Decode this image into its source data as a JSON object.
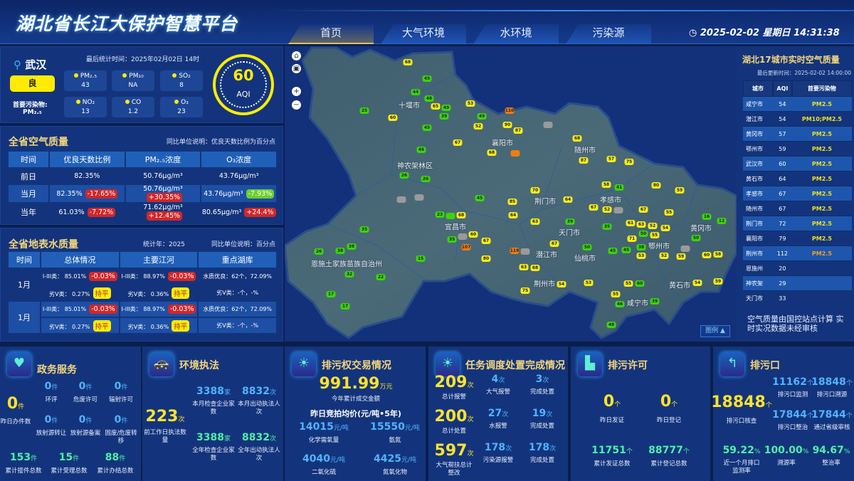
{
  "header": {
    "title": "湖北省长江大保护智慧平台",
    "tabs": [
      "首页",
      "大气环境",
      "水环境",
      "污染源"
    ],
    "active_tab": "首页",
    "datetime": "2025-02-02 星期日 14:31:38"
  },
  "city_air": {
    "city": "武汉",
    "level": "良",
    "stat_time": "最后统计时间：2025年02月02日 14时",
    "primary_label": "首要污染物:",
    "primary": "PM₂.₅",
    "aqi": "60",
    "aqi_label": "AQI",
    "pollutants": [
      {
        "name": "PM₂.₅",
        "value": "43"
      },
      {
        "name": "PM₁₀",
        "value": "NA"
      },
      {
        "name": "SO₂",
        "value": "8"
      },
      {
        "name": "NO₂",
        "value": "13"
      },
      {
        "name": "CO",
        "value": "1.2"
      },
      {
        "name": "O₃",
        "value": "23"
      }
    ]
  },
  "province_air": {
    "title": "全省空气质量",
    "note": "同比单位说明：优良天数比例为百分点",
    "headers": [
      "时间",
      "优良天数比例",
      "PM₂.₅浓度",
      "O₃浓度"
    ],
    "rows": [
      {
        "time": "前日",
        "c1": "82.35%",
        "c1b": "",
        "c2": "50.76μg/m³",
        "c2b": "",
        "c3": "43.76μg/m³",
        "c3b": ""
      },
      {
        "time": "当月",
        "c1": "82.35%",
        "c1b": "-17.65%",
        "c2": "50.76μg/m³",
        "c2b": "+30.35%",
        "c3": "43.76μg/m³",
        "c3b": "-7.93%"
      },
      {
        "time": "当年",
        "c1": "61.03%",
        "c1b": "-7.72%",
        "c2": "71.62μg/m³",
        "c2b": "+12.45%",
        "c3": "80.65μg/m³",
        "c3b": "+24.4%"
      }
    ]
  },
  "water": {
    "title": "全省地表水质量",
    "year": "统计年：2025",
    "note": "同比单位说明：百分点",
    "headers": [
      "时间",
      "总体情况",
      "主要江河",
      "重点湖库"
    ],
    "rows": [
      {
        "time": "1月",
        "a1": "I-III类：  85.01%",
        "a1b": "-0.03%",
        "a2": "劣V类：  0.27%",
        "a2b": "持平",
        "b1": "I-III类：  88.97%",
        "b1b": "-0.03%",
        "b2": "劣V类：  0.36%",
        "b2b": "持平",
        "c1": "水质优良：62个，72.09%",
        "c2": "劣V类：-个，-%"
      },
      {
        "time": "1月",
        "a1": "I-III类：  85.01%",
        "a1b": "-0.03%",
        "a2": "劣V类：  0.27%",
        "a2b": "持平",
        "b1": "I-III类：  88.97%",
        "b1b": "-0.03%",
        "b2": "劣V类：  0.36%",
        "b2b": "持平",
        "c1": "水质优良：62个，72.09%",
        "c2": "劣V类：-个，-%"
      }
    ]
  },
  "map": {
    "legend_button": "图例 ▲",
    "labels": [
      "十堰市",
      "襄阳市",
      "随州市",
      "神农架林区",
      "荆门市",
      "孝感市",
      "黄冈市",
      "宜昌市",
      "天门市",
      "潜江市",
      "仙桃市",
      "恩施土家族苗族自治州",
      "荆州市",
      "咸宁市",
      "黄石市",
      "鄂州市"
    ],
    "level_colors": {
      "y": "#f7ee16",
      "g": "#3ad40c",
      "o": "#f07c14",
      "n": "#9a9a9a"
    },
    "stations": [
      {
        "v": "68",
        "c": "y"
      },
      {
        "v": "45",
        "c": "g"
      },
      {
        "v": "44",
        "c": "g"
      },
      {
        "v": "48",
        "c": "g"
      },
      {
        "v": "65",
        "c": "y"
      },
      {
        "v": "49",
        "c": "g"
      },
      {
        "v": "39",
        "c": "g"
      },
      {
        "v": "25",
        "c": "g"
      },
      {
        "v": "60",
        "c": "y"
      },
      {
        "v": "45",
        "c": "g"
      },
      {
        "v": "53",
        "c": "y"
      },
      {
        "v": "49",
        "c": "g"
      },
      {
        "v": "52",
        "c": "y"
      },
      {
        "v": "110",
        "c": "o"
      },
      {
        "v": "90",
        "c": "y"
      },
      {
        "v": "87",
        "c": "y"
      },
      {
        "v": "67",
        "c": "y"
      },
      {
        "v": "68",
        "c": "y"
      },
      {
        "v": "",
        "c": "o"
      },
      {
        "v": "",
        "c": "n"
      },
      {
        "v": "68",
        "c": "y"
      },
      {
        "v": "87",
        "c": "y"
      },
      {
        "v": "57",
        "c": "y"
      },
      {
        "v": "75",
        "c": "y"
      },
      {
        "v": "46",
        "c": "g"
      },
      {
        "v": "26",
        "c": "g"
      },
      {
        "v": "26",
        "c": "g"
      },
      {
        "v": "",
        "c": "n"
      },
      {
        "v": "",
        "c": "n"
      },
      {
        "v": "45",
        "c": "g"
      },
      {
        "v": "64",
        "c": "y"
      },
      {
        "v": "85",
        "c": "y"
      },
      {
        "v": "70",
        "c": "y"
      },
      {
        "v": "64",
        "c": "y"
      },
      {
        "v": "67",
        "c": "y"
      },
      {
        "v": "58",
        "c": "y"
      },
      {
        "v": "41",
        "c": "g"
      },
      {
        "v": "52",
        "c": "y"
      },
      {
        "v": "",
        "c": "n"
      },
      {
        "v": "80",
        "c": "y"
      },
      {
        "v": "59",
        "c": "y"
      },
      {
        "v": "67",
        "c": "y"
      },
      {
        "v": "55",
        "c": "y"
      },
      {
        "v": "16",
        "c": "g"
      },
      {
        "v": "12",
        "c": "g"
      },
      {
        "v": "23",
        "c": "g"
      },
      {
        "v": "68",
        "c": "y"
      },
      {
        "v": "",
        "c": "g"
      },
      {
        "v": "",
        "c": "n"
      },
      {
        "v": "60",
        "c": "y"
      },
      {
        "v": "35",
        "c": "g"
      },
      {
        "v": "67",
        "c": "y"
      },
      {
        "v": "107",
        "c": "o"
      },
      {
        "v": "119",
        "c": "o"
      },
      {
        "v": "",
        "c": "n"
      },
      {
        "v": "35",
        "c": "g"
      },
      {
        "v": "38",
        "c": "g"
      },
      {
        "v": "38",
        "c": "g"
      },
      {
        "v": "26",
        "c": "g"
      },
      {
        "v": "15",
        "c": "g"
      },
      {
        "v": "80",
        "c": "y"
      },
      {
        "v": "68",
        "c": "y"
      },
      {
        "v": "63",
        "c": "y"
      },
      {
        "v": "63",
        "c": "y"
      },
      {
        "v": "67",
        "c": "y"
      },
      {
        "v": "39",
        "c": "g"
      },
      {
        "v": "35",
        "c": "g"
      },
      {
        "v": "61",
        "c": "y"
      },
      {
        "v": "63",
        "c": "y"
      },
      {
        "v": "52",
        "c": "y"
      },
      {
        "v": "71",
        "c": "y"
      },
      {
        "v": "50",
        "c": "g"
      },
      {
        "v": "38",
        "c": "g"
      },
      {
        "v": "53",
        "c": "y"
      },
      {
        "v": "50",
        "c": "g"
      },
      {
        "v": "45",
        "c": "g"
      },
      {
        "v": "45",
        "c": "g"
      },
      {
        "v": "54",
        "c": "y"
      },
      {
        "v": "55",
        "c": "y"
      },
      {
        "v": "50",
        "c": "g"
      },
      {
        "v": "52",
        "c": "y"
      },
      {
        "v": "59",
        "c": "y"
      },
      {
        "v": "",
        "c": "n"
      },
      {
        "v": "60",
        "c": "y"
      },
      {
        "v": "58",
        "c": "y"
      },
      {
        "v": "59",
        "c": "y"
      },
      {
        "v": "60",
        "c": "g"
      },
      {
        "v": "55",
        "c": "y"
      },
      {
        "v": "53",
        "c": "y"
      },
      {
        "v": "54",
        "c": "y"
      },
      {
        "v": "75",
        "c": "y"
      },
      {
        "v": "55",
        "c": "y"
      },
      {
        "v": "46",
        "c": "g"
      },
      {
        "v": "39",
        "c": "g"
      },
      {
        "v": "48",
        "c": "g"
      },
      {
        "v": "22",
        "c": "g"
      },
      {
        "v": "32",
        "c": "g"
      },
      {
        "v": "17",
        "c": "g"
      },
      {
        "v": "17",
        "c": "g"
      },
      {
        "v": "54",
        "c": "y"
      }
    ]
  },
  "city_rank": {
    "title": "湖北17城市实时空气质量",
    "updated": "最后更新时间：2025-02-02 14:00:00",
    "headers": [
      "城市",
      "AQI",
      "首要污染物"
    ],
    "rows": [
      [
        "咸宁市",
        "54",
        "PM2.5"
      ],
      [
        "潜江市",
        "54",
        "PM10;PM2.5"
      ],
      [
        "黄冈市",
        "57",
        "PM2.5"
      ],
      [
        "鄂州市",
        "59",
        "PM2.5"
      ],
      [
        "武汉市",
        "60",
        "PM2.5"
      ],
      [
        "黄石市",
        "64",
        "PM2.5"
      ],
      [
        "孝感市",
        "67",
        "PM2.5"
      ],
      [
        "随州市",
        "67",
        "PM2.5"
      ],
      [
        "荆门市",
        "72",
        "PM2.5"
      ],
      [
        "襄阳市",
        "79",
        "PM2.5"
      ],
      [
        "荆州市",
        "112",
        "PM2.5"
      ],
      [
        "恩施州",
        "20",
        ""
      ],
      [
        "神农架",
        "29",
        ""
      ],
      [
        "天门市",
        "33",
        ""
      ]
    ],
    "footnote": "空气质量由国控站点计算 实时实况数据未经审核"
  },
  "gov": {
    "title": "政务服务",
    "main": {
      "v": "0",
      "u": "件",
      "l": "昨日办件数"
    },
    "grid": [
      {
        "v": "0",
        "u": "件",
        "l": "环评"
      },
      {
        "v": "0",
        "u": "件",
        "l": "危废许可"
      },
      {
        "v": "0",
        "u": "件",
        "l": "辐射许可"
      },
      {
        "v": "0",
        "u": "件",
        "l": "放射源转让"
      },
      {
        "v": "0",
        "u": "件",
        "l": "放射源备案"
      },
      {
        "v": "0",
        "u": "件",
        "l": "固废/危废转移"
      }
    ],
    "totals": [
      {
        "v": "153",
        "u": "件",
        "l": "累计接件总数"
      },
      {
        "v": "15",
        "u": "件",
        "l": "累计受理总数"
      },
      {
        "v": "88",
        "u": "件",
        "l": "累计办结总数"
      }
    ]
  },
  "enforce": {
    "title": "环境执法",
    "main": {
      "v": "223",
      "u": "次",
      "l": "前工作日执法数量"
    },
    "items": [
      {
        "v": "3388",
        "u": "家",
        "l": "本月检查企业家数"
      },
      {
        "v": "8832",
        "u": "次",
        "l": "本月出动执法人次"
      },
      {
        "v": "3388",
        "u": "家",
        "l": "全年检查企业家数"
      },
      {
        "v": "8832",
        "u": "次",
        "l": "全年出动执法人次"
      }
    ]
  },
  "trade": {
    "title": "排污权交易情况",
    "total": {
      "v": "991.99",
      "u": "万元",
      "l": "今年累计成交金额"
    },
    "sub": "昨日竞拍均价(元/吨•5年)",
    "items": [
      {
        "v": "14015",
        "u": "元/吨",
        "l": "化学需氧量"
      },
      {
        "v": "15550",
        "u": "元/吨",
        "l": "氨氮"
      },
      {
        "v": "4040",
        "u": "元/吨",
        "l": "二氧化硫"
      },
      {
        "v": "4425",
        "u": "元/吨",
        "l": "氮氧化物"
      }
    ]
  },
  "task": {
    "title": "任务调度处置完成情况",
    "rows": [
      [
        {
          "v": "209",
          "u": "次",
          "l": "总计报警"
        },
        {
          "v": "4",
          "u": "次",
          "l": "大气报警"
        },
        {
          "v": "3",
          "u": "次",
          "l": "完成处置"
        }
      ],
      [
        {
          "v": "200",
          "u": "次",
          "l": "总计处置"
        },
        {
          "v": "27",
          "u": "次",
          "l": "水报警"
        },
        {
          "v": "19",
          "u": "次",
          "l": "完成处置"
        }
      ],
      [
        {
          "v": "597",
          "u": "次",
          "l": "大气帮扶总计整改"
        },
        {
          "v": "178",
          "u": "次",
          "l": "污染源报警"
        },
        {
          "v": "178",
          "u": "次",
          "l": "完成处置"
        }
      ]
    ]
  },
  "permit": {
    "title": "排污许可",
    "items": [
      {
        "v": "0",
        "u": "个",
        "l": "昨日发证"
      },
      {
        "v": "0",
        "u": "个",
        "l": "昨日登记"
      },
      {
        "v": "11751",
        "u": "个",
        "l": "累计发证总数"
      },
      {
        "v": "88777",
        "u": "个",
        "l": "累计登记总数"
      }
    ]
  },
  "outlet": {
    "title": "排污口",
    "main": {
      "v": "18848",
      "u": "个",
      "l": "排污口核查"
    },
    "items": [
      {
        "v": "11162",
        "u": "个",
        "l": "排污口监测"
      },
      {
        "v": "18848",
        "u": "个",
        "l": "排污口溯源"
      },
      {
        "v": "17844",
        "u": "个",
        "l": "排污口整治"
      },
      {
        "v": "17844",
        "u": "个",
        "l": "通过省级审核"
      }
    ],
    "rates": [
      {
        "v": "59.22",
        "u": "%",
        "l": "近一个月排口监测率"
      },
      {
        "v": "100.00",
        "u": "%",
        "l": "溯源率"
      },
      {
        "v": "94.67",
        "u": "%",
        "l": "整治率"
      }
    ]
  }
}
